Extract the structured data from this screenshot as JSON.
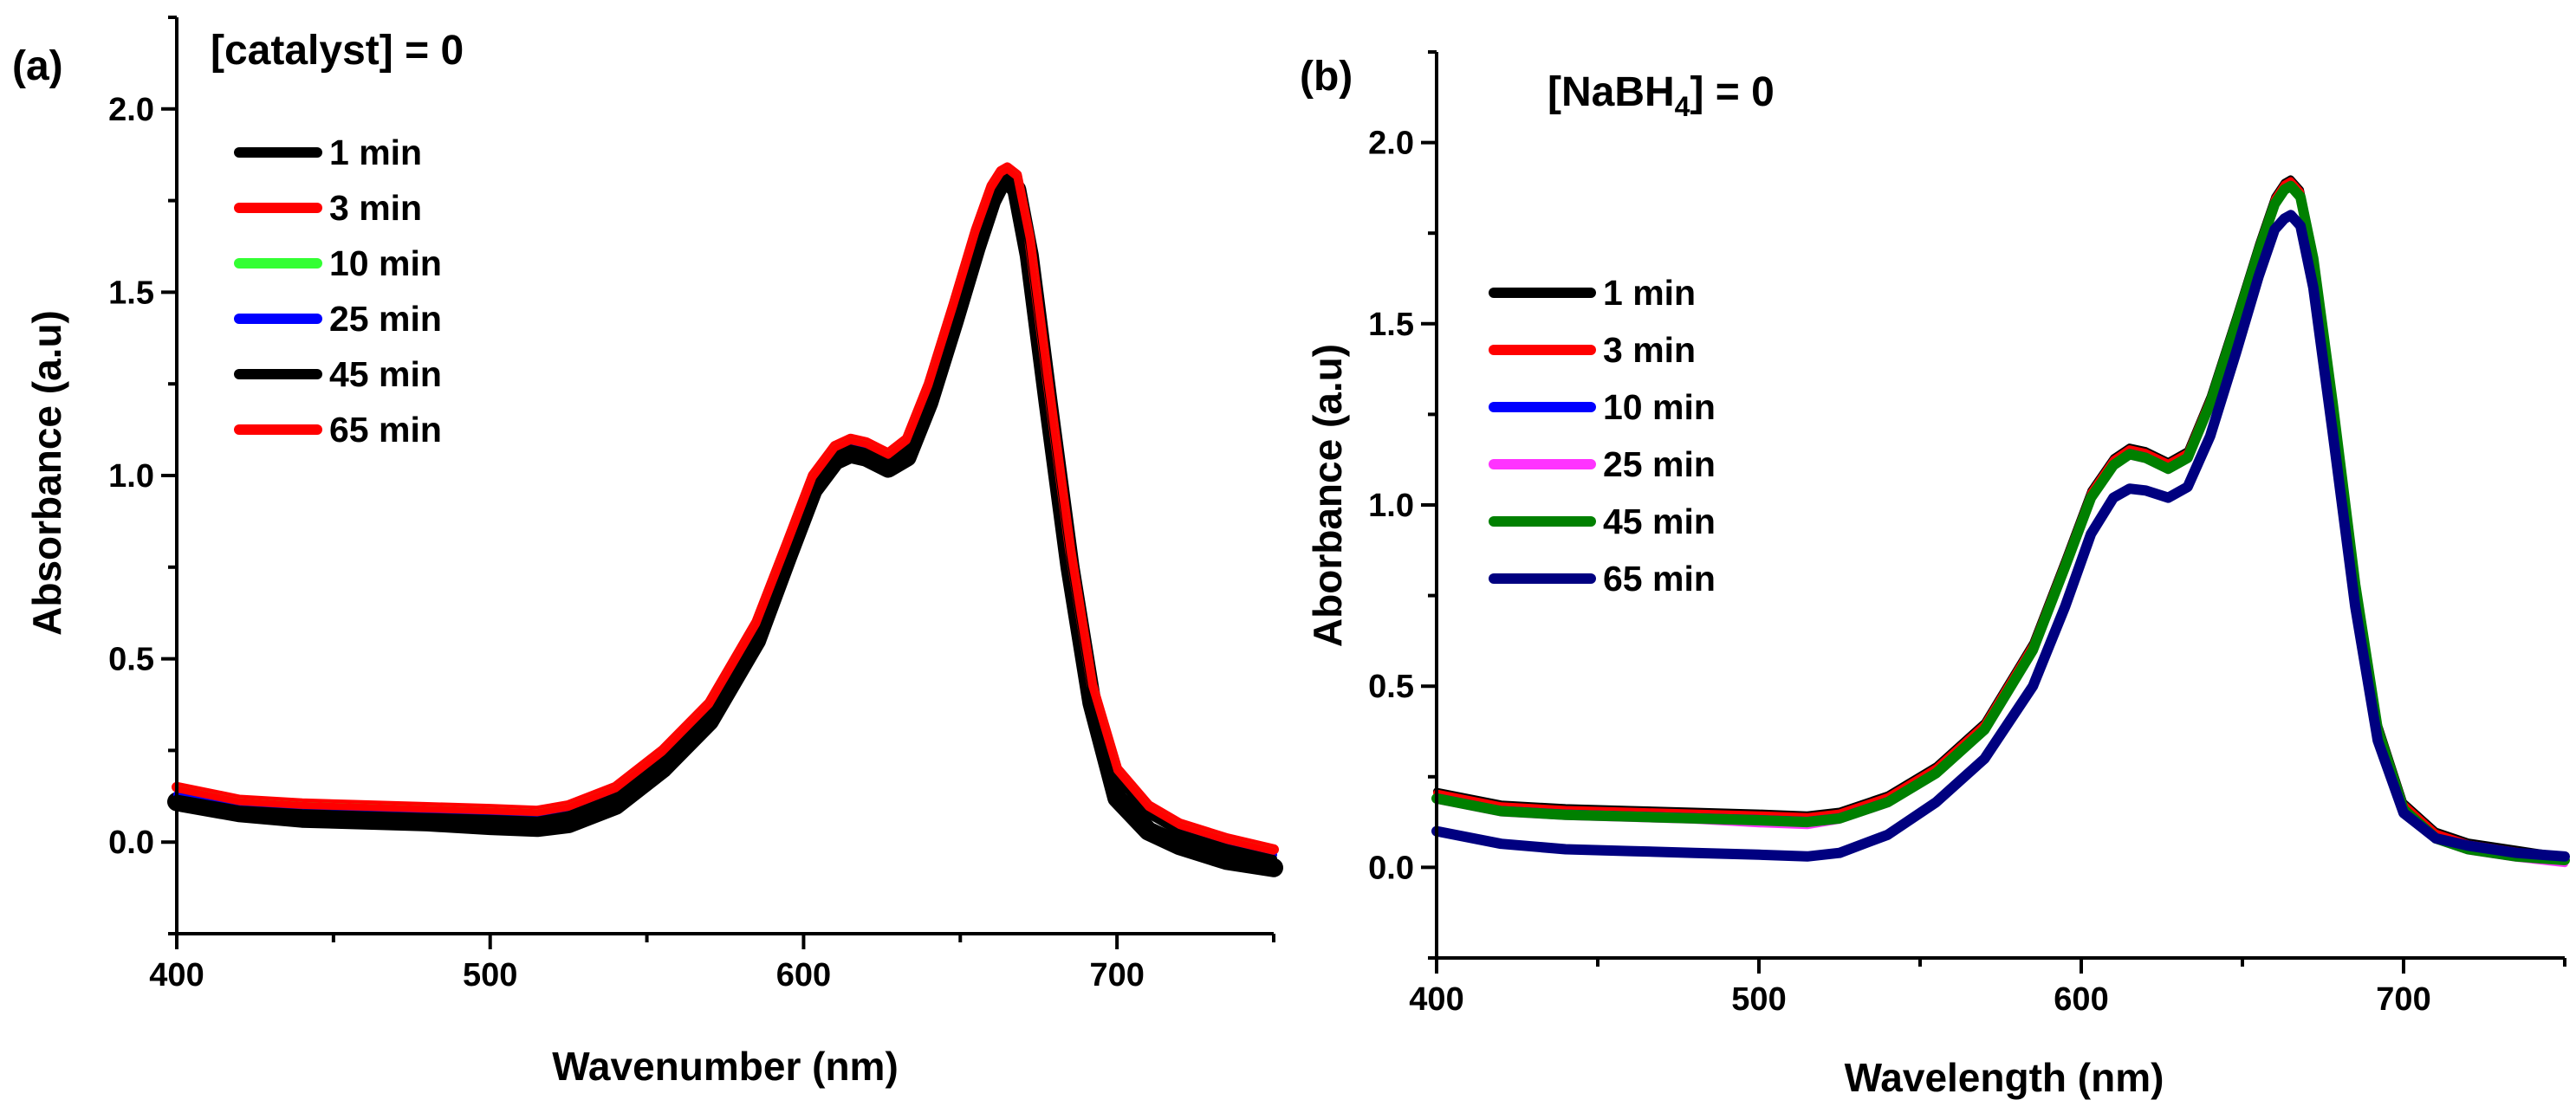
{
  "chart_data": [
    {
      "type": "line",
      "panel_label": "(a)",
      "header": {
        "text": "[catalyst] = 0"
      },
      "xlabel": "Wavenumber (nm)",
      "ylabel": "Absorbance (a.u)",
      "xlim": [
        400,
        750
      ],
      "ylim": [
        -0.25,
        2.25
      ],
      "x_ticks": [
        400,
        500,
        600,
        700
      ],
      "y_ticks": [
        0.0,
        0.5,
        1.0,
        1.5,
        2.0
      ],
      "x_tick_labels": [
        "400",
        "500",
        "600",
        "700"
      ],
      "y_tick_labels": [
        "0.0",
        "0.5",
        "1.0",
        "1.5",
        "2.0"
      ],
      "legend_position": "top-left",
      "x": [
        400,
        420,
        440,
        460,
        480,
        500,
        515,
        525,
        540,
        555,
        570,
        585,
        595,
        603,
        610,
        615,
        620,
        627,
        633,
        640,
        648,
        655,
        660,
        663,
        665,
        668,
        672,
        678,
        685,
        692,
        700,
        710,
        720,
        735,
        750
      ],
      "series": [
        {
          "name": "1 min",
          "color": "#000000",
          "y": [
            0.11,
            0.08,
            0.065,
            0.06,
            0.055,
            0.045,
            0.04,
            0.05,
            0.1,
            0.2,
            0.33,
            0.55,
            0.78,
            0.96,
            1.04,
            1.06,
            1.05,
            1.02,
            1.05,
            1.2,
            1.42,
            1.62,
            1.75,
            1.8,
            1.81,
            1.78,
            1.6,
            1.2,
            0.75,
            0.38,
            0.12,
            0.03,
            -0.01,
            -0.05,
            -0.07
          ]
        },
        {
          "name": "3 min",
          "color": "#ff0000",
          "y": [
            0.15,
            0.115,
            0.105,
            0.1,
            0.095,
            0.09,
            0.085,
            0.1,
            0.15,
            0.25,
            0.38,
            0.6,
            0.82,
            1.0,
            1.08,
            1.1,
            1.09,
            1.06,
            1.1,
            1.25,
            1.47,
            1.67,
            1.79,
            1.83,
            1.84,
            1.82,
            1.65,
            1.25,
            0.8,
            0.43,
            0.2,
            0.1,
            0.05,
            0.01,
            -0.02
          ]
        },
        {
          "name": "10 min",
          "color": "#33ff33",
          "y": [
            0.145,
            0.11,
            0.1,
            0.095,
            0.09,
            0.085,
            0.08,
            0.095,
            0.145,
            0.245,
            0.375,
            0.595,
            0.815,
            0.995,
            1.075,
            1.095,
            1.085,
            1.055,
            1.095,
            1.245,
            1.465,
            1.665,
            1.785,
            1.825,
            1.835,
            1.815,
            1.645,
            1.245,
            0.795,
            0.425,
            0.195,
            0.095,
            0.045,
            0.005,
            -0.025
          ]
        },
        {
          "name": "25 min",
          "color": "#0000ff",
          "y": [
            0.13,
            0.1,
            0.09,
            0.085,
            0.08,
            0.075,
            0.07,
            0.085,
            0.135,
            0.235,
            0.365,
            0.585,
            0.805,
            0.985,
            1.065,
            1.085,
            1.075,
            1.045,
            1.085,
            1.235,
            1.455,
            1.655,
            1.775,
            1.815,
            1.825,
            1.805,
            1.635,
            1.235,
            0.785,
            0.415,
            0.185,
            0.085,
            0.035,
            -0.005,
            -0.035
          ]
        },
        {
          "name": "45 min",
          "color": "#000000",
          "y": [
            0.12,
            0.09,
            0.08,
            0.075,
            0.07,
            0.065,
            0.06,
            0.075,
            0.125,
            0.225,
            0.355,
            0.575,
            0.795,
            0.975,
            1.055,
            1.075,
            1.065,
            1.035,
            1.075,
            1.225,
            1.445,
            1.645,
            1.765,
            1.805,
            1.815,
            1.795,
            1.625,
            1.225,
            0.775,
            0.405,
            0.175,
            0.075,
            0.025,
            -0.015,
            -0.045
          ]
        },
        {
          "name": "65 min",
          "color": "#ff0000",
          "y": [
            0.145,
            0.11,
            0.1,
            0.095,
            0.09,
            0.085,
            0.08,
            0.095,
            0.145,
            0.245,
            0.375,
            0.595,
            0.815,
            0.995,
            1.075,
            1.095,
            1.085,
            1.055,
            1.095,
            1.245,
            1.465,
            1.665,
            1.785,
            1.825,
            1.835,
            1.815,
            1.645,
            1.245,
            0.795,
            0.425,
            0.195,
            0.095,
            0.045,
            0.005,
            -0.025
          ]
        }
      ]
    },
    {
      "type": "line",
      "panel_label": "(b)",
      "header": {
        "prefix": "[NaBH",
        "subscript": "4",
        "suffix": "] = 0"
      },
      "xlabel": "Wavelength (nm)",
      "ylabel": "Aborbance (a.u)",
      "xlim": [
        400,
        750
      ],
      "ylim": [
        -0.25,
        2.25
      ],
      "x_ticks": [
        400,
        500,
        600,
        700
      ],
      "y_ticks": [
        0.0,
        0.5,
        1.0,
        1.5,
        2.0
      ],
      "x_tick_labels": [
        "400",
        "500",
        "600",
        "700"
      ],
      "y_tick_labels": [
        "0.0",
        "0.5",
        "1.0",
        "1.5",
        "2.0"
      ],
      "legend_position": "center-left",
      "x": [
        400,
        420,
        440,
        460,
        480,
        500,
        515,
        525,
        540,
        555,
        570,
        585,
        595,
        603,
        610,
        615,
        620,
        627,
        633,
        640,
        648,
        655,
        660,
        663,
        665,
        668,
        672,
        678,
        685,
        692,
        700,
        710,
        720,
        735,
        750
      ],
      "series": [
        {
          "name": "1 min",
          "color": "#000000",
          "y": [
            0.21,
            0.175,
            0.165,
            0.16,
            0.155,
            0.15,
            0.145,
            0.155,
            0.2,
            0.28,
            0.4,
            0.62,
            0.85,
            1.04,
            1.13,
            1.16,
            1.15,
            1.12,
            1.15,
            1.3,
            1.52,
            1.72,
            1.85,
            1.89,
            1.9,
            1.87,
            1.7,
            1.3,
            0.8,
            0.4,
            0.18,
            0.1,
            0.07,
            0.05,
            0.03
          ]
        },
        {
          "name": "3 min",
          "color": "#ff0000",
          "y": [
            0.205,
            0.17,
            0.16,
            0.155,
            0.15,
            0.145,
            0.14,
            0.15,
            0.195,
            0.275,
            0.395,
            0.615,
            0.845,
            1.035,
            1.125,
            1.155,
            1.145,
            1.115,
            1.145,
            1.295,
            1.515,
            1.715,
            1.845,
            1.885,
            1.895,
            1.865,
            1.695,
            1.295,
            0.795,
            0.395,
            0.175,
            0.095,
            0.065,
            0.045,
            0.025
          ]
        },
        {
          "name": "10 min",
          "color": "#0000ff",
          "y": [
            0.195,
            0.16,
            0.15,
            0.145,
            0.14,
            0.135,
            0.13,
            0.14,
            0.185,
            0.265,
            0.385,
            0.605,
            0.835,
            1.025,
            1.115,
            1.145,
            1.135,
            1.105,
            1.135,
            1.285,
            1.505,
            1.705,
            1.835,
            1.875,
            1.885,
            1.855,
            1.685,
            1.285,
            0.785,
            0.385,
            0.165,
            0.085,
            0.055,
            0.035,
            0.015
          ]
        },
        {
          "name": "25 min",
          "color": "#ff33ff",
          "y": [
            0.185,
            0.15,
            0.14,
            0.135,
            0.13,
            0.12,
            0.115,
            0.13,
            0.175,
            0.255,
            0.375,
            0.595,
            0.825,
            1.015,
            1.105,
            1.135,
            1.125,
            1.095,
            1.125,
            1.275,
            1.495,
            1.695,
            1.825,
            1.865,
            1.875,
            1.845,
            1.675,
            1.275,
            0.775,
            0.375,
            0.155,
            0.075,
            0.045,
            0.025,
            0.01
          ]
        },
        {
          "name": "45 min",
          "color": "#008000",
          "y": [
            0.19,
            0.155,
            0.145,
            0.14,
            0.135,
            0.13,
            0.125,
            0.135,
            0.18,
            0.26,
            0.38,
            0.6,
            0.83,
            1.02,
            1.11,
            1.14,
            1.13,
            1.1,
            1.13,
            1.28,
            1.5,
            1.7,
            1.83,
            1.87,
            1.88,
            1.85,
            1.68,
            1.28,
            0.78,
            0.38,
            0.16,
            0.08,
            0.05,
            0.03,
            0.02
          ]
        },
        {
          "name": "65 min",
          "color": "#000080",
          "y": [
            0.1,
            0.065,
            0.05,
            0.045,
            0.04,
            0.035,
            0.03,
            0.04,
            0.09,
            0.18,
            0.3,
            0.5,
            0.72,
            0.92,
            1.02,
            1.045,
            1.04,
            1.02,
            1.05,
            1.19,
            1.42,
            1.63,
            1.76,
            1.79,
            1.8,
            1.77,
            1.6,
            1.2,
            0.72,
            0.35,
            0.15,
            0.08,
            0.06,
            0.04,
            0.03
          ]
        }
      ]
    }
  ]
}
